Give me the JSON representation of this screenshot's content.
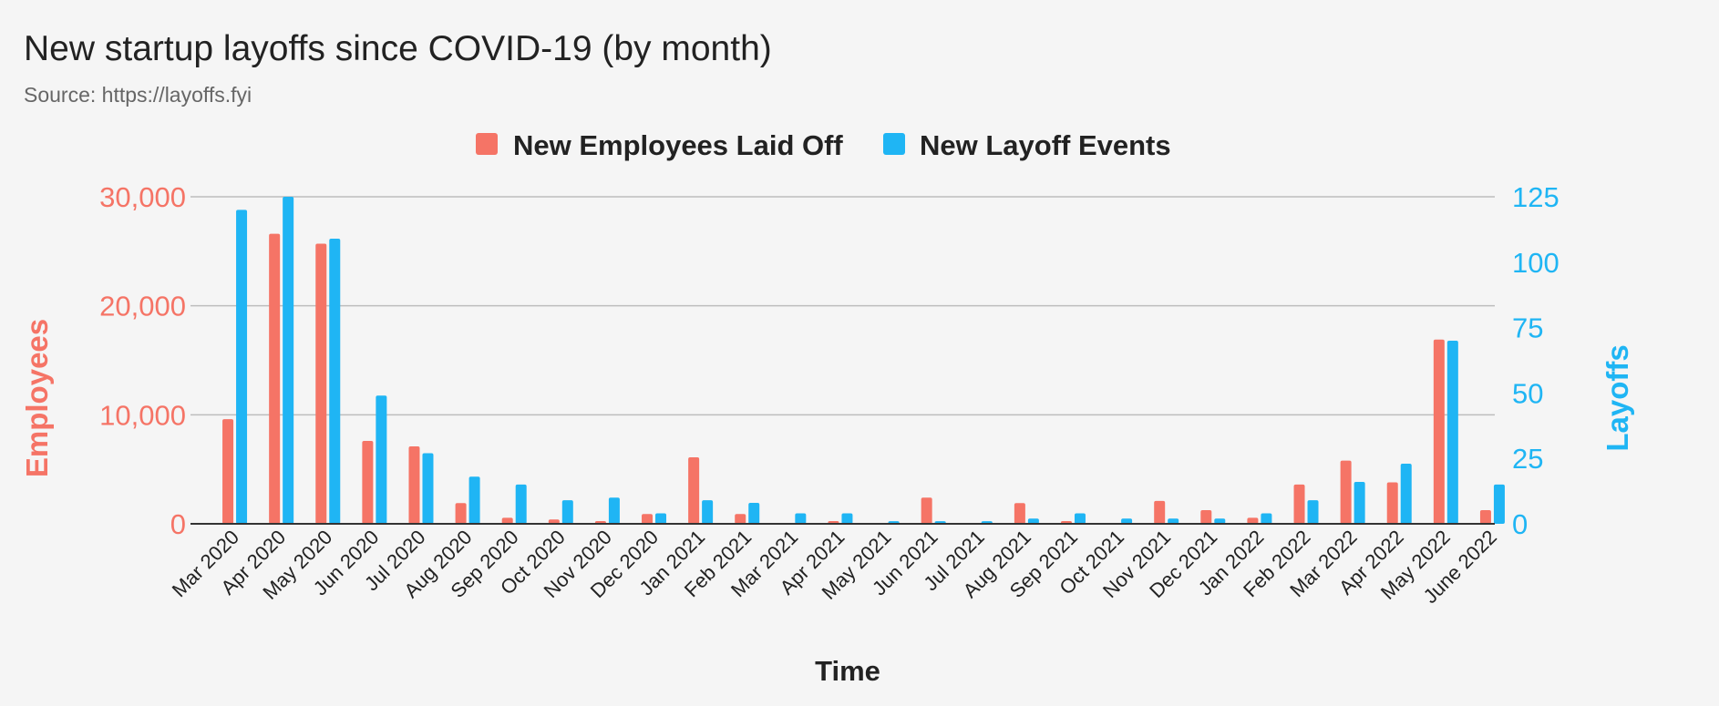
{
  "chart_data": {
    "type": "bar",
    "title": "New startup layoffs since COVID-19 (by month)",
    "subtitle": "Source: https://layoffs.fyi",
    "xlabel": "Time",
    "ylabel_left": "Employees",
    "ylabel_right": "Layoffs",
    "ylim_left": [
      0,
      30000
    ],
    "ylim_right": [
      0,
      125
    ],
    "yticks_left": [
      "0",
      "10,000",
      "20,000",
      "30,000"
    ],
    "yticks_right": [
      "0",
      "25",
      "50",
      "75",
      "100",
      "125"
    ],
    "grid": true,
    "legend_position": "top-center",
    "categories": [
      "Mar 2020",
      "Apr 2020",
      "May 2020",
      "Jun 2020",
      "Jul 2020",
      "Aug 2020",
      "Sep 2020",
      "Oct 2020",
      "Nov 2020",
      "Dec 2020",
      "Jan 2021",
      "Feb 2021",
      "Mar 2021",
      "Apr 2021",
      "May 2021",
      "Jun 2021",
      "Jul 2021",
      "Aug 2021",
      "Sep 2021",
      "Oct 2021",
      "Nov 2021",
      "Dec 2021",
      "Jan 2022",
      "Feb 2022",
      "Mar 2022",
      "Apr 2022",
      "May 2022",
      "June 2022"
    ],
    "series": [
      {
        "name": "New Employees Laid Off",
        "axis": "left",
        "color": "#f57466",
        "values": [
          9600,
          26600,
          25700,
          7600,
          7100,
          1900,
          550,
          400,
          250,
          900,
          6100,
          900,
          0,
          250,
          0,
          2400,
          0,
          1900,
          250,
          0,
          2100,
          1250,
          550,
          3600,
          5800,
          3800,
          16900,
          1250
        ]
      },
      {
        "name": "New Layoff Events",
        "axis": "right",
        "color": "#1fb5f4",
        "values": [
          120,
          125,
          109,
          49,
          27,
          18,
          15,
          9,
          10,
          4,
          9,
          8,
          4,
          4,
          1,
          1,
          1,
          2,
          4,
          2,
          2,
          2,
          4,
          9,
          16,
          23,
          70,
          15
        ]
      }
    ]
  }
}
